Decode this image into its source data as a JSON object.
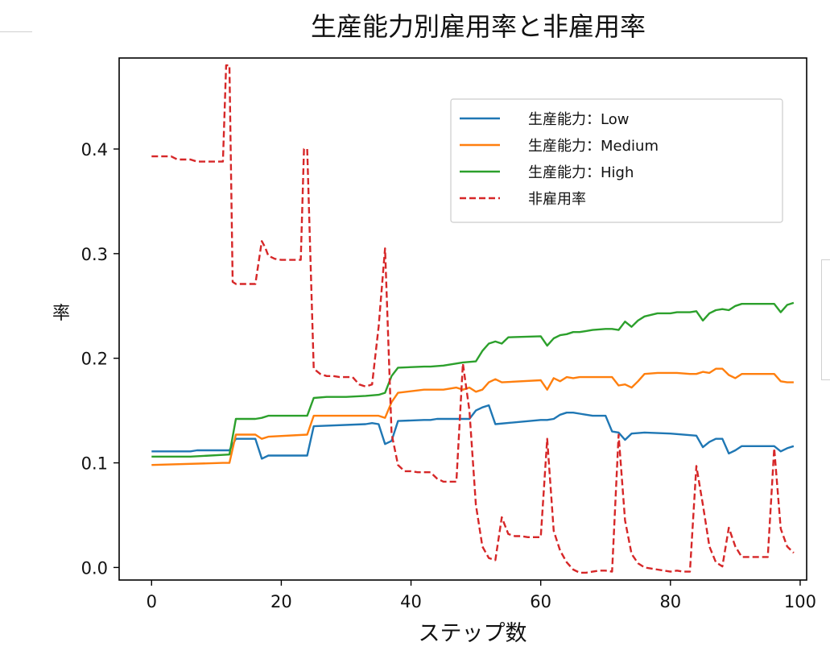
{
  "chart_data": {
    "type": "line",
    "title": "生産能力別雇用率と非雇用率",
    "xlabel": "ステップ数",
    "ylabel": "率",
    "xlim": [
      -5,
      101
    ],
    "ylim": [
      -0.012,
      0.487
    ],
    "xticks": [
      0,
      20,
      40,
      60,
      80,
      100
    ],
    "yticks": [
      0.0,
      0.1,
      0.2,
      0.3,
      0.4
    ],
    "xtick_labels": [
      "0",
      "20",
      "40",
      "60",
      "80",
      "100"
    ],
    "ytick_labels": [
      "0.0",
      "0.1",
      "0.2",
      "0.3",
      "0.4"
    ],
    "grid": false,
    "legend_position": "top-right",
    "series": [
      {
        "name": "生産能力：Low",
        "color": "#1f77b4",
        "style": "solid",
        "x": [
          0,
          6,
          7,
          12,
          13,
          16,
          17,
          18,
          24,
          25,
          33,
          34,
          35,
          36,
          37,
          38,
          42,
          43,
          44,
          49,
          50,
          51,
          52,
          53,
          60,
          61,
          62,
          63,
          64,
          65,
          66,
          67,
          68,
          70,
          71,
          72,
          73,
          74,
          76,
          80,
          84,
          85,
          86,
          87,
          88,
          89,
          90,
          91,
          95,
          96,
          97,
          98,
          99
        ],
        "y": [
          0.111,
          0.111,
          0.112,
          0.112,
          0.123,
          0.123,
          0.104,
          0.107,
          0.107,
          0.135,
          0.137,
          0.138,
          0.137,
          0.118,
          0.121,
          0.14,
          0.141,
          0.141,
          0.142,
          0.142,
          0.15,
          0.153,
          0.155,
          0.137,
          0.141,
          0.141,
          0.142,
          0.146,
          0.148,
          0.148,
          0.147,
          0.146,
          0.145,
          0.145,
          0.13,
          0.129,
          0.122,
          0.128,
          0.129,
          0.128,
          0.126,
          0.115,
          0.12,
          0.123,
          0.123,
          0.109,
          0.112,
          0.116,
          0.116,
          0.116,
          0.111,
          0.114,
          0.116
        ]
      },
      {
        "name": "生産能力：Medium",
        "color": "#ff7f0e",
        "style": "solid",
        "x": [
          0,
          11,
          12,
          13,
          16,
          17,
          18,
          24,
          25,
          35,
          36,
          37,
          38,
          42,
          43,
          45,
          47,
          48,
          49,
          50,
          51,
          52,
          53,
          54,
          60,
          61,
          62,
          63,
          64,
          65,
          66,
          70,
          71,
          72,
          73,
          74,
          75,
          76,
          78,
          80,
          81,
          83,
          84,
          85,
          86,
          87,
          88,
          89,
          90,
          91,
          95,
          96,
          97,
          98,
          99
        ],
        "y": [
          0.098,
          0.1,
          0.1,
          0.127,
          0.127,
          0.123,
          0.125,
          0.127,
          0.145,
          0.145,
          0.143,
          0.158,
          0.167,
          0.17,
          0.17,
          0.17,
          0.172,
          0.17,
          0.172,
          0.168,
          0.17,
          0.177,
          0.18,
          0.177,
          0.179,
          0.17,
          0.181,
          0.178,
          0.182,
          0.181,
          0.182,
          0.182,
          0.182,
          0.174,
          0.175,
          0.172,
          0.178,
          0.185,
          0.186,
          0.186,
          0.186,
          0.185,
          0.185,
          0.187,
          0.186,
          0.19,
          0.19,
          0.184,
          0.181,
          0.185,
          0.185,
          0.185,
          0.178,
          0.177,
          0.177
        ]
      },
      {
        "name": "生産能力：High",
        "color": "#2ca02c",
        "style": "solid",
        "x": [
          0,
          6,
          12,
          13,
          16,
          17,
          18,
          20,
          24,
          25,
          27,
          30,
          33,
          35,
          36,
          37,
          38,
          42,
          43,
          45,
          48,
          50,
          51,
          52,
          53,
          54,
          55,
          60,
          61,
          62,
          63,
          64,
          65,
          66,
          67,
          68,
          70,
          71,
          72,
          73,
          74,
          75,
          76,
          78,
          80,
          81,
          83,
          84,
          85,
          86,
          87,
          88,
          89,
          90,
          91,
          95,
          96,
          97,
          98,
          99
        ],
        "y": [
          0.106,
          0.106,
          0.108,
          0.142,
          0.142,
          0.143,
          0.145,
          0.145,
          0.145,
          0.162,
          0.163,
          0.163,
          0.164,
          0.165,
          0.167,
          0.183,
          0.191,
          0.192,
          0.192,
          0.193,
          0.196,
          0.197,
          0.207,
          0.214,
          0.216,
          0.214,
          0.22,
          0.221,
          0.212,
          0.219,
          0.222,
          0.223,
          0.225,
          0.225,
          0.226,
          0.227,
          0.228,
          0.228,
          0.227,
          0.235,
          0.23,
          0.236,
          0.24,
          0.243,
          0.243,
          0.244,
          0.244,
          0.245,
          0.236,
          0.243,
          0.246,
          0.247,
          0.246,
          0.25,
          0.252,
          0.252,
          0.252,
          0.244,
          0.251,
          0.253
        ]
      },
      {
        "name": "非雇用率",
        "color": "#d62728",
        "style": "dashed",
        "x": [
          0,
          3,
          4,
          6,
          7,
          8,
          9,
          10,
          11,
          11.5,
          12,
          12.5,
          13,
          14,
          15,
          16,
          17,
          17.5,
          18,
          19,
          20,
          21,
          22,
          23,
          23.5,
          24,
          25,
          26,
          27,
          28,
          29,
          30,
          31,
          32,
          33,
          34,
          35,
          36,
          37,
          38,
          39,
          40,
          41,
          42,
          43,
          44,
          45,
          46,
          47,
          48,
          49,
          50,
          51,
          52,
          53,
          54,
          55,
          56,
          57,
          58,
          59,
          60,
          61,
          62,
          63,
          64,
          65,
          66,
          67,
          68,
          69,
          70,
          71,
          72,
          73,
          74,
          75,
          76,
          77,
          78,
          79,
          80,
          81,
          82,
          83,
          84,
          85,
          86,
          87,
          88,
          89,
          90,
          91,
          92,
          93,
          94,
          95,
          96,
          97,
          98,
          99
        ],
        "y": [
          0.393,
          0.393,
          0.39,
          0.39,
          0.388,
          0.388,
          0.388,
          0.388,
          0.388,
          0.48,
          0.48,
          0.273,
          0.271,
          0.271,
          0.271,
          0.271,
          0.312,
          0.306,
          0.298,
          0.295,
          0.294,
          0.294,
          0.294,
          0.294,
          0.4,
          0.4,
          0.19,
          0.185,
          0.183,
          0.183,
          0.182,
          0.182,
          0.182,
          0.175,
          0.173,
          0.175,
          0.23,
          0.305,
          0.128,
          0.098,
          0.092,
          0.092,
          0.091,
          0.091,
          0.091,
          0.085,
          0.082,
          0.082,
          0.082,
          0.195,
          0.15,
          0.06,
          0.02,
          0.009,
          0.007,
          0.048,
          0.032,
          0.03,
          0.03,
          0.029,
          0.029,
          0.029,
          0.123,
          0.035,
          0.016,
          0.005,
          -0.002,
          -0.005,
          -0.005,
          -0.004,
          -0.003,
          -0.003,
          -0.004,
          0.127,
          0.045,
          0.013,
          0.004,
          0.0,
          -0.001,
          -0.002,
          -0.003,
          -0.004,
          -0.003,
          -0.004,
          -0.004,
          0.097,
          0.06,
          0.02,
          0.005,
          0.001,
          0.038,
          0.02,
          0.01,
          0.01,
          0.01,
          0.01,
          0.01,
          0.114,
          0.037,
          0.02,
          0.014
        ]
      }
    ]
  }
}
